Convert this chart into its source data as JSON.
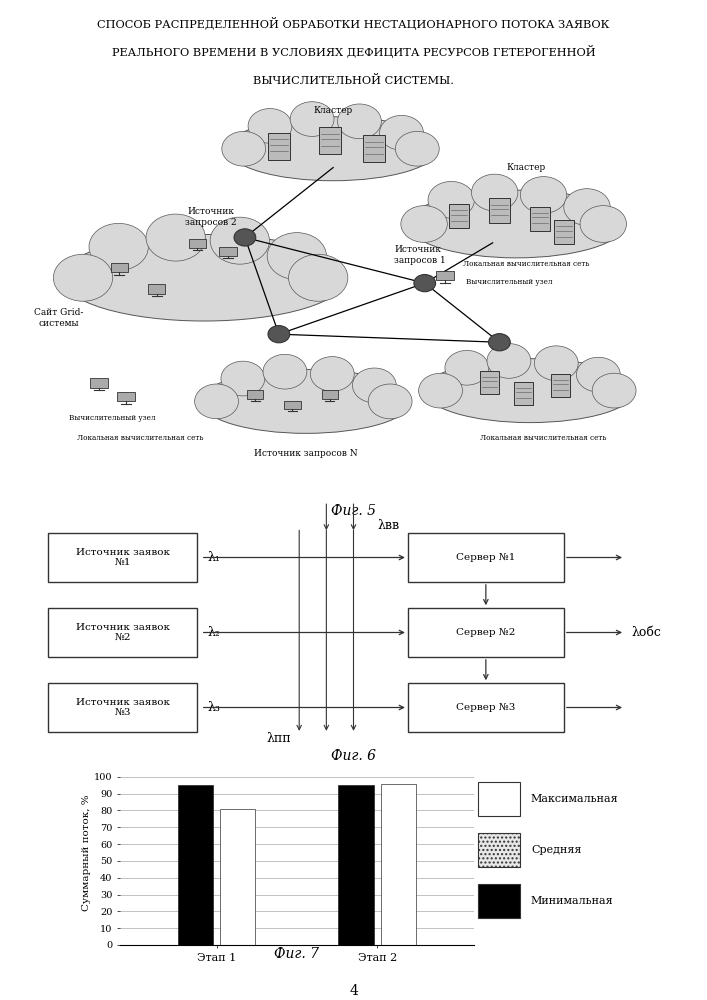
{
  "title_line1": "СПОСОБ РАСПРЕДЕЛЕННОЙ ОБРАБОТКИ НЕСТАЦИОНАРНОГО ПОТОКА ЗАЯВОК",
  "title_line2": "РЕАЛЬНОГО ВРЕМЕНИ В УСЛОВИЯХ ДЕФИЦИТА РЕСУРСОВ ГЕТЕРОГЕННОЙ",
  "title_line3": "ВЫЧИСЛИТЕЛЬНОЙ СИСТЕМЫ.",
  "fig5_label": "Фиг. 5",
  "fig6_label": "Фиг. 6",
  "fig7_label": "Фиг. 7",
  "page_number": "4",
  "fig6": {
    "sources": [
      "Источник заявок\n№1",
      "Источник заявок\n№2",
      "Источник заявок\n№3"
    ],
    "servers": [
      "Сервер №1",
      "Сервер №2",
      "Сервер №3"
    ],
    "lambda_labels": [
      "λ₁",
      "λ₂",
      "λ₃"
    ],
    "lambda_vv": "λвв",
    "lambda_pp": "λпп",
    "lambda_obs": "λобс"
  },
  "fig7": {
    "categories": [
      "Этап 1",
      "Этап 2"
    ],
    "min_values": [
      95,
      95
    ],
    "max_values": [
      81,
      96
    ],
    "ylabel": "Суммарный поток, %",
    "legend_max": "Максимальная",
    "legend_avg": "Средняя",
    "legend_min": "Минимальная",
    "yticks": [
      0,
      10,
      20,
      30,
      40,
      50,
      60,
      70,
      80,
      90,
      100
    ]
  }
}
